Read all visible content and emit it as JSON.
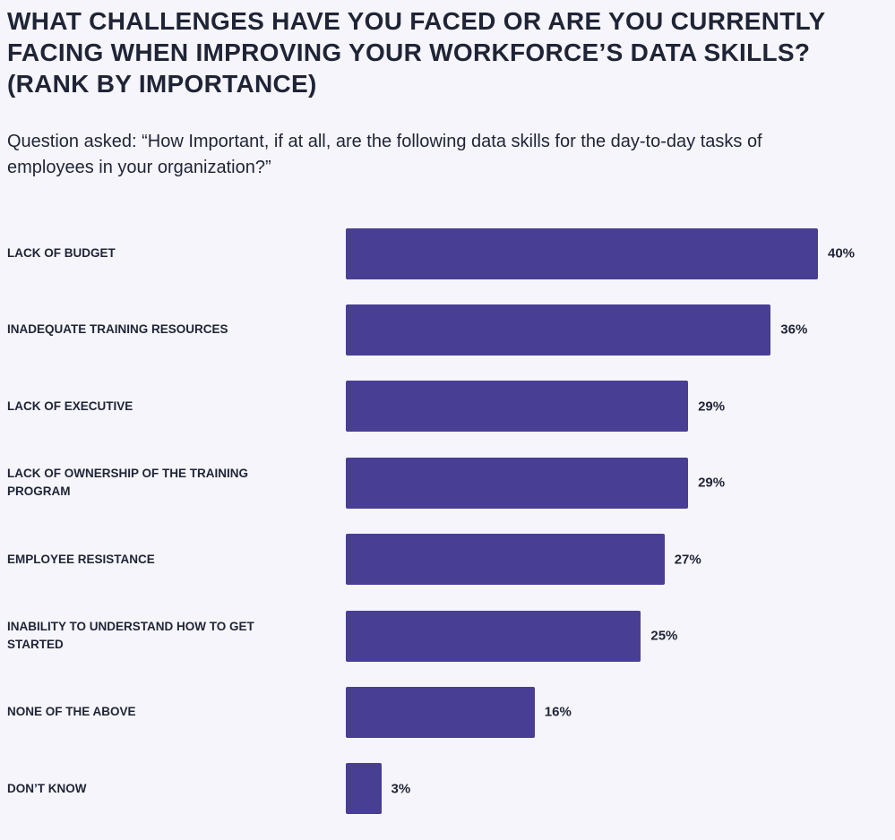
{
  "chart_data": {
    "type": "bar",
    "orientation": "horizontal",
    "title": "WHAT CHALLENGES HAVE YOU FACED OR ARE YOU CURRENTLY FACING WHEN IMPROVING YOUR WORKFORCE’S DATA SKILLS? (RANK BY IMPORTANCE)",
    "subtitle": "Question asked: “How Important, if at all, are the following data skills for the day-to-day tasks of employees in your organization?”",
    "categories": [
      "LACK OF BUDGET",
      "INADEQUATE TRAINING RESOURCES",
      "LACK OF EXECUTIVE",
      "LACK OF OWNERSHIP OF THE TRAINING PROGRAM",
      "EMPLOYEE RESISTANCE",
      "INABILITY TO UNDERSTAND HOW TO GET STARTED",
      "NONE OF THE ABOVE",
      "DON’T KNOW"
    ],
    "values": [
      40,
      36,
      29,
      29,
      27,
      25,
      16,
      3
    ],
    "value_labels": [
      "40%",
      "36%",
      "29%",
      "29%",
      "27%",
      "25%",
      "16%",
      "3%"
    ],
    "color": "#483f94"
  }
}
